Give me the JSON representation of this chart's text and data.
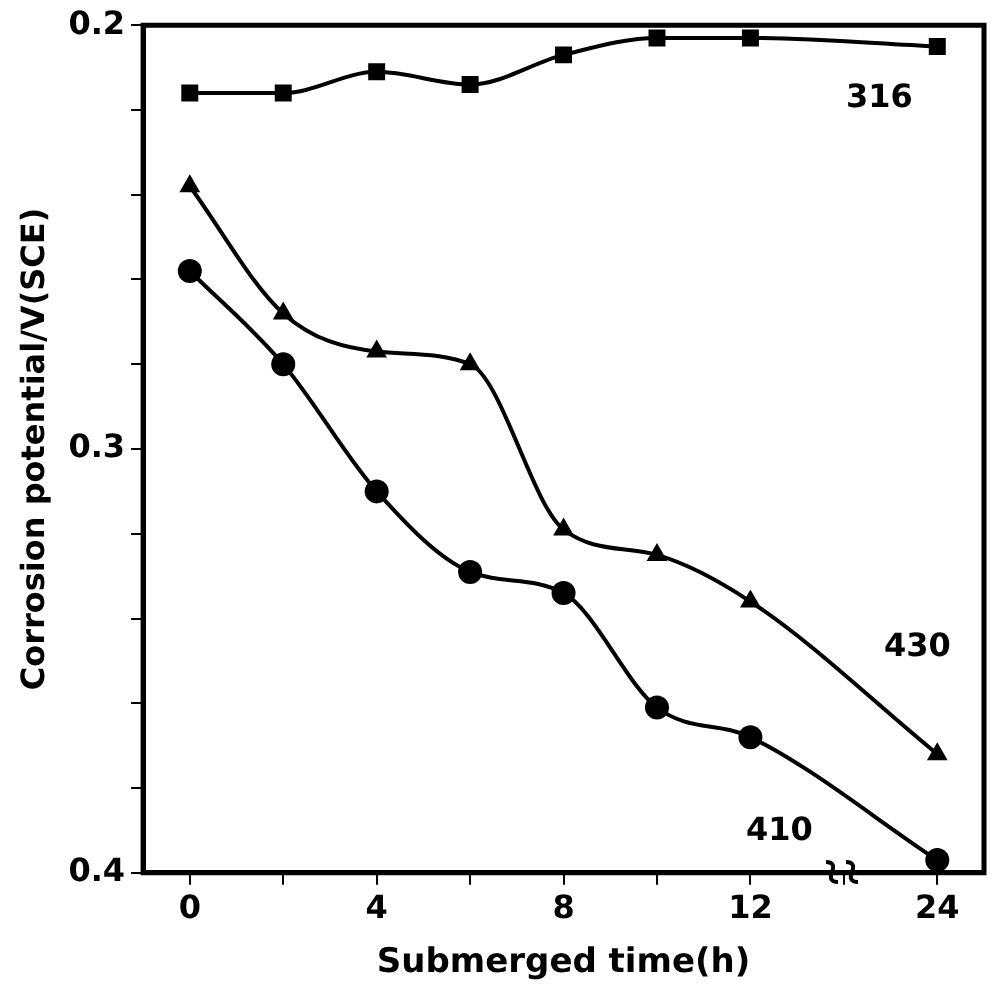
{
  "chart_data": {
    "type": "line",
    "xlabel": "Submerged time(h)",
    "ylabel": "Corrosion potential/V(SCE)",
    "categories": [
      "0",
      null,
      "4",
      null,
      "8",
      null,
      "12",
      null,
      "24"
    ],
    "series": [
      {
        "name": "316",
        "color": "#000000",
        "marker": "square",
        "values": [
          0.216,
          0.216,
          0.211,
          0.214,
          0.207,
          0.203,
          0.203,
          null,
          0.205
        ]
      },
      {
        "name": "430",
        "color": "#000000",
        "marker": "triangle",
        "values": [
          0.238,
          0.268,
          0.277,
          0.28,
          0.319,
          0.325,
          0.336,
          null,
          0.372
        ]
      },
      {
        "name": "410",
        "color": "#000000",
        "marker": "circle",
        "values": [
          0.258,
          0.28,
          0.31,
          0.329,
          0.334,
          0.361,
          0.368,
          null,
          0.397
        ]
      }
    ],
    "ylim": [
      0.4,
      0.2
    ],
    "yticks": [
      0.2,
      {
        "value": 0.22,
        "label": null
      },
      {
        "value": 0.24,
        "label": null
      },
      {
        "value": 0.26,
        "label": null
      },
      {
        "value": 0.28,
        "label": null
      },
      0.3,
      {
        "value": 0.32,
        "label": null
      },
      {
        "value": 0.34,
        "label": null
      },
      {
        "value": 0.36,
        "label": null
      },
      {
        "value": 0.38,
        "label": null
      },
      0.4
    ],
    "grid": false
  }
}
